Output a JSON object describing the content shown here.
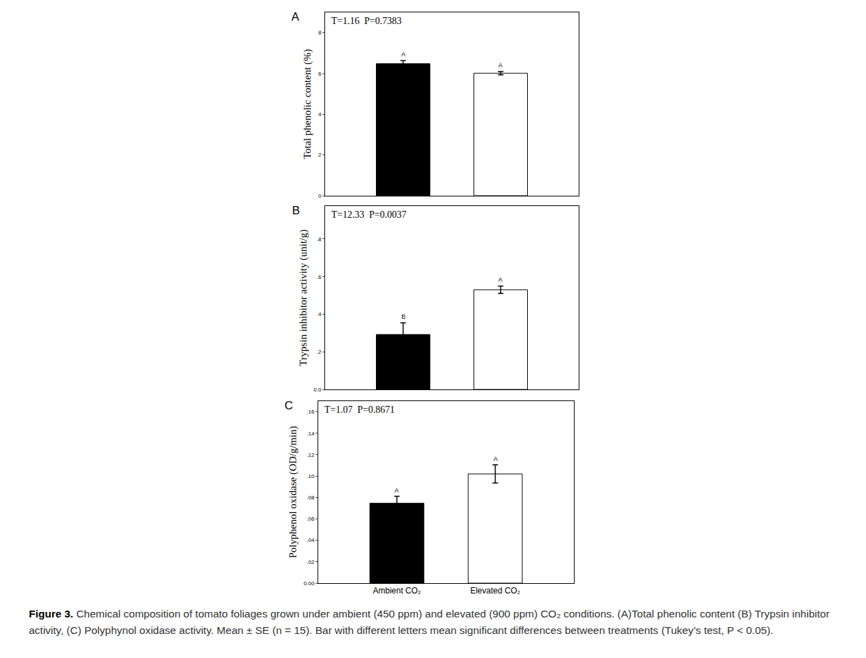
{
  "chart_data": [
    {
      "type": "bar",
      "panel": "A",
      "annotations": [
        "T=1.16  P=0.7383"
      ],
      "y_label": "Total phenolic content (%)",
      "categories": [
        "Ambient CO₂",
        "Elevated CO₂"
      ],
      "values": [
        6.48,
        6.01
      ],
      "errors": [
        0.15,
        0.08
      ],
      "letters": [
        "A",
        "A"
      ],
      "colors": [
        "#000000",
        "#ffffff"
      ],
      "ylim": [
        0,
        9
      ],
      "yticks": [
        0,
        2,
        4,
        6,
        8
      ],
      "grid": false,
      "tick_labels": "y"
    },
    {
      "type": "bar",
      "panel": "B",
      "annotations": [
        "T=12.33  P=0.0037"
      ],
      "y_label": "Trypsin inhibitor activity (unit/g)",
      "categories": [
        "Ambient CO₂",
        "Elevated CO₂"
      ],
      "values": [
        0.292,
        0.53
      ],
      "errors": [
        0.062,
        0.02
      ],
      "letters": [
        "B",
        "A"
      ],
      "colors": [
        "#000000",
        "#ffffff"
      ],
      "ylim": [
        0,
        0.975
      ],
      "yticks": [
        {
          "value": 0,
          "label": "0.0"
        },
        {
          "value": 0.2,
          "label": ".2"
        },
        {
          "value": 0.4,
          "label": ".4"
        },
        {
          "value": 0.6,
          "label": ".6"
        },
        {
          "value": 0.8,
          "label": ".8"
        }
      ],
      "grid": false,
      "tick_labels": "y"
    },
    {
      "type": "bar",
      "panel": "C",
      "annotations": [
        "T=1.07  P=0.8671"
      ],
      "y_label": "Polyphenol oxidase (OD/g/min)",
      "categories": [
        "Ambient CO₂",
        "Elevated CO₂"
      ],
      "values": [
        0.0746,
        0.102
      ],
      "errors": [
        0.0065,
        0.0085
      ],
      "letters": [
        "A",
        "A"
      ],
      "colors": [
        "#000000",
        "#ffffff"
      ],
      "ylim": [
        0,
        0.17
      ],
      "yticks": [
        {
          "value": 0,
          "label": "0.00"
        },
        {
          "value": 0.02,
          "label": ".02"
        },
        {
          "value": 0.04,
          "label": ".04"
        },
        {
          "value": 0.06,
          "label": ".06"
        },
        {
          "value": 0.08,
          "label": ".08"
        },
        {
          "value": 0.1,
          "label": ".10"
        },
        {
          "value": 0.12,
          "label": ".12"
        },
        {
          "value": 0.14,
          "label": ".14"
        },
        {
          "value": 0.16,
          "label": ".16"
        }
      ],
      "grid": false
    }
  ],
  "caption": {
    "label": "Figure 3.",
    "text": "Chemical composition of tomato foliages grown under ambient (450 ppm) and elevated (900 ppm) CO₂ conditions. (A)Total phenolic content (B) Trypsin inhibitor activity, (C) Polyphynol oxidase activity. Mean ± SE (n = 15). Bar with different letters mean significant differences between treatments (Tukey’s test, P < 0.05)."
  }
}
